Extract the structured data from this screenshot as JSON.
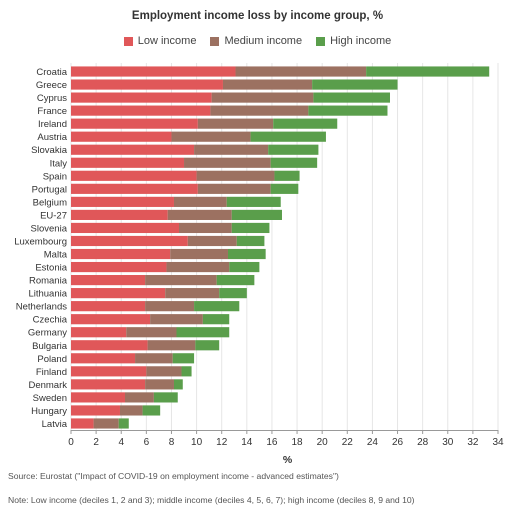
{
  "chart_data": {
    "type": "bar",
    "orientation": "horizontal",
    "stacked": true,
    "title": "Employment income loss by income group, %",
    "xlabel": "%",
    "xlim": [
      0,
      34
    ],
    "xticks": [
      0,
      2,
      4,
      6,
      8,
      10,
      12,
      14,
      16,
      18,
      20,
      22,
      24,
      26,
      28,
      30,
      32,
      34
    ],
    "grid": "vertical",
    "legend_position": "top-center",
    "categories": [
      "Croatia",
      "Greece",
      "Cyprus",
      "France",
      "Ireland",
      "Austria",
      "Slovakia",
      "Italy",
      "Spain",
      "Portugal",
      "Belgium",
      "EU-27",
      "Slovenia",
      "Luxembourg",
      "Malta",
      "Estonia",
      "Romania",
      "Lithuania",
      "Netherlands",
      "Czechia",
      "Germany",
      "Bulgaria",
      "Poland",
      "Finland",
      "Denmark",
      "Sweden",
      "Hungary",
      "Latvia"
    ],
    "series": [
      {
        "name": "Low income",
        "color": "#e05759",
        "values": [
          13.1,
          12.1,
          11.2,
          11.1,
          10.1,
          8.0,
          9.8,
          9.0,
          10.0,
          10.1,
          8.2,
          7.7,
          8.6,
          9.3,
          7.9,
          7.6,
          5.9,
          7.5,
          5.9,
          6.3,
          4.4,
          6.1,
          5.1,
          6.0,
          5.9,
          4.3,
          3.9,
          1.8
        ]
      },
      {
        "name": "Medium income",
        "color": "#9c7161",
        "values": [
          10.4,
          7.1,
          8.1,
          7.8,
          6.0,
          6.3,
          5.9,
          6.9,
          6.2,
          5.8,
          4.2,
          5.1,
          4.2,
          3.9,
          4.6,
          5.0,
          5.7,
          4.3,
          3.9,
          4.2,
          4.0,
          3.8,
          3.0,
          2.8,
          2.3,
          2.3,
          1.8,
          2.0
        ]
      },
      {
        "name": "High income",
        "color": "#5a9e4b",
        "values": [
          9.8,
          6.8,
          6.1,
          6.3,
          5.1,
          6.0,
          4.0,
          3.7,
          2.0,
          2.2,
          4.3,
          4.0,
          3.0,
          2.2,
          3.0,
          2.4,
          3.0,
          2.2,
          3.6,
          2.1,
          4.2,
          1.9,
          1.7,
          0.8,
          0.7,
          1.9,
          1.4,
          0.8
        ]
      }
    ]
  },
  "source": "Source: Eurostat (\"Impact of COVID-19 on employment income - advanced estimates\")",
  "note": "Note: Low income (deciles 1, 2 and 3); middle income (deciles 4, 5, 6, 7); high income (deciles 8, 9 and 10)"
}
